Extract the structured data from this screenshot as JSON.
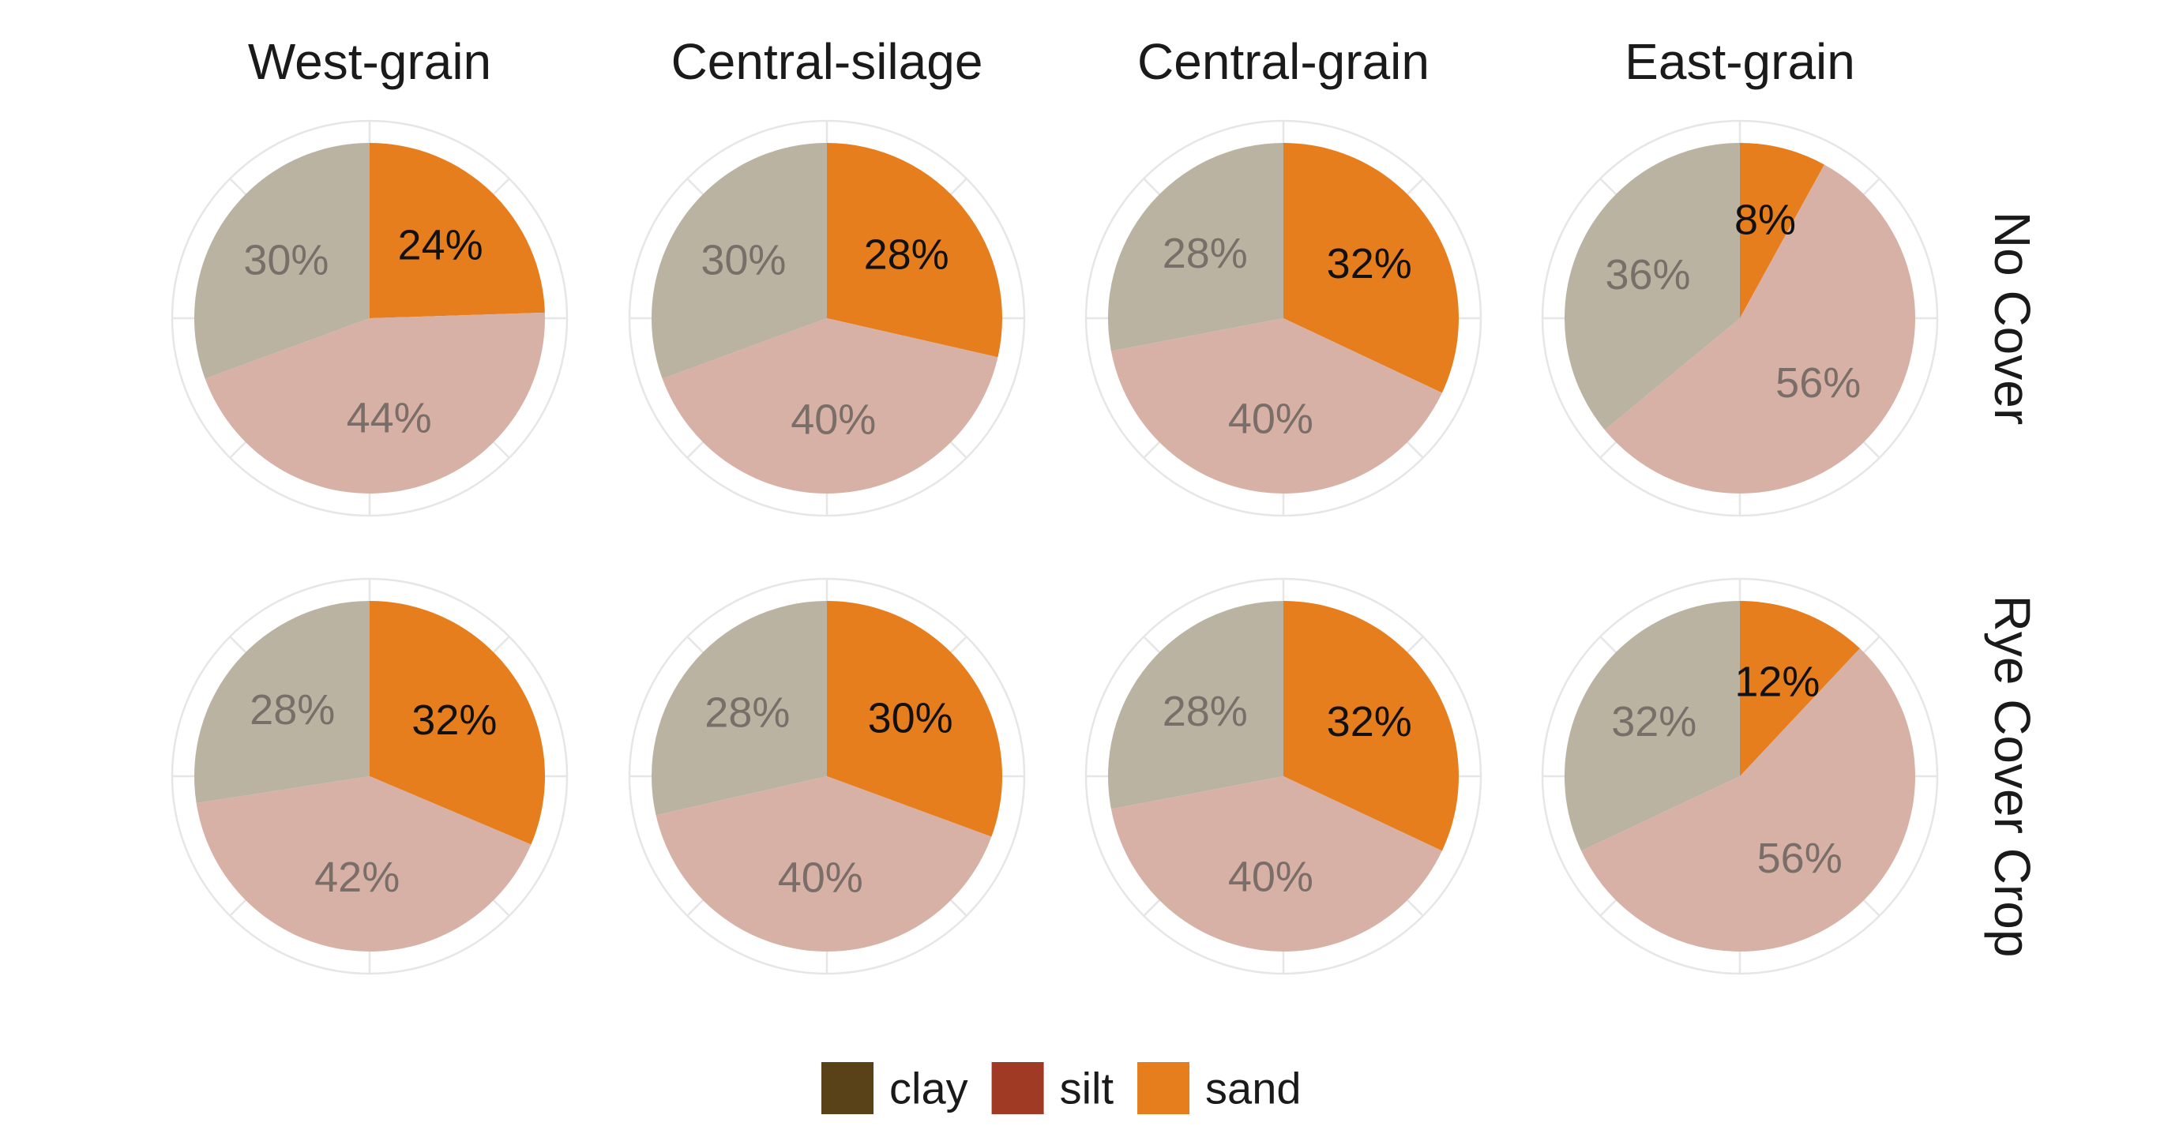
{
  "chart_data": {
    "type": "pie",
    "facet_columns": [
      "West-grain",
      "Central-silage",
      "Central-grain",
      "East-grain"
    ],
    "facet_rows": [
      "No Cover",
      "Rye Cover Crop"
    ],
    "series": [
      {
        "name": "clay",
        "color": "#5a4218",
        "faded_color": "#bbb3a2"
      },
      {
        "name": "silt",
        "color": "#a03a24",
        "faded_color": "#d8b1a6"
      },
      {
        "name": "sand",
        "color": "#e77e1e",
        "faded_color": "#e77e1e"
      }
    ],
    "highlighted_series": "sand",
    "panels": [
      {
        "row": "No Cover",
        "column": "West-grain",
        "values": {
          "sand": 24,
          "silt": 44,
          "clay": 30
        },
        "labels": {
          "sand": "24%",
          "silt": "44%",
          "clay": "30%"
        }
      },
      {
        "row": "No Cover",
        "column": "Central-silage",
        "values": {
          "sand": 28,
          "silt": 40,
          "clay": 30
        },
        "labels": {
          "sand": "28%",
          "silt": "40%",
          "clay": "30%"
        }
      },
      {
        "row": "No Cover",
        "column": "Central-grain",
        "values": {
          "sand": 32,
          "silt": 40,
          "clay": 28
        },
        "labels": {
          "sand": "32%",
          "silt": "40%",
          "clay": "28%"
        }
      },
      {
        "row": "No Cover",
        "column": "East-grain",
        "values": {
          "sand": 8,
          "silt": 56,
          "clay": 36
        },
        "labels": {
          "sand": "8%",
          "silt": "56%",
          "clay": "36%"
        }
      },
      {
        "row": "Rye Cover Crop",
        "column": "West-grain",
        "values": {
          "sand": 32,
          "silt": 42,
          "clay": 28
        },
        "labels": {
          "sand": "32%",
          "silt": "42%",
          "clay": "28%"
        }
      },
      {
        "row": "Rye Cover Crop",
        "column": "Central-silage",
        "values": {
          "sand": 30,
          "silt": 40,
          "clay": 28
        },
        "labels": {
          "sand": "30%",
          "silt": "40%",
          "clay": "28%"
        }
      },
      {
        "row": "Rye Cover Crop",
        "column": "Central-grain",
        "values": {
          "sand": 32,
          "silt": 40,
          "clay": 28
        },
        "labels": {
          "sand": "32%",
          "silt": "40%",
          "clay": "28%"
        }
      },
      {
        "row": "Rye Cover Crop",
        "column": "East-grain",
        "values": {
          "sand": 12,
          "silt": 56,
          "clay": 32
        },
        "labels": {
          "sand": "12%",
          "silt": "56%",
          "clay": "32%"
        }
      }
    ],
    "legend": {
      "position": "bottom",
      "entries": [
        "clay",
        "silt",
        "sand"
      ]
    },
    "grid": true
  }
}
